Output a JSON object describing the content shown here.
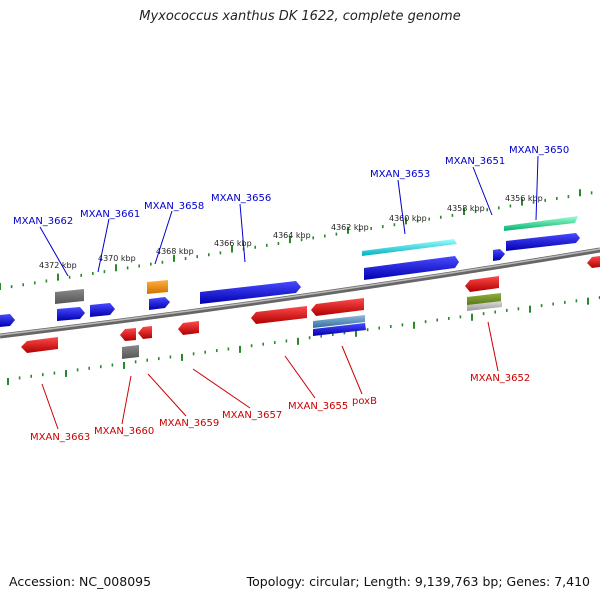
{
  "title": "Myxococcus xanthus DK 1622, complete genome",
  "footer": {
    "accession": "Accession: NC_008095",
    "stats": "Topology: circular; Length: 9,139,763 bp; Genes: 7,410"
  },
  "colors": {
    "upper_label": "#0000cc",
    "lower_label": "#cc0000",
    "tick": "#2a8a2a",
    "axis": "#888888"
  },
  "scale_labels": [
    "4356 kbp",
    "4358 kbp",
    "4360 kbp",
    "4362 kbp",
    "4364 kbp",
    "4366 kbp",
    "4368 kbp",
    "4370 kbp",
    "4372 kbp"
  ],
  "upper_genes": [
    "MXAN_3650",
    "MXAN_3651",
    "MXAN_3653",
    "MXAN_3656",
    "MXAN_3658",
    "MXAN_3661",
    "MXAN_3662"
  ],
  "lower_genes": [
    "MXAN_3652",
    "poxB",
    "MXAN_3655",
    "MXAN_3657",
    "MXAN_3659",
    "MXAN_3660",
    "MXAN_3663"
  ]
}
